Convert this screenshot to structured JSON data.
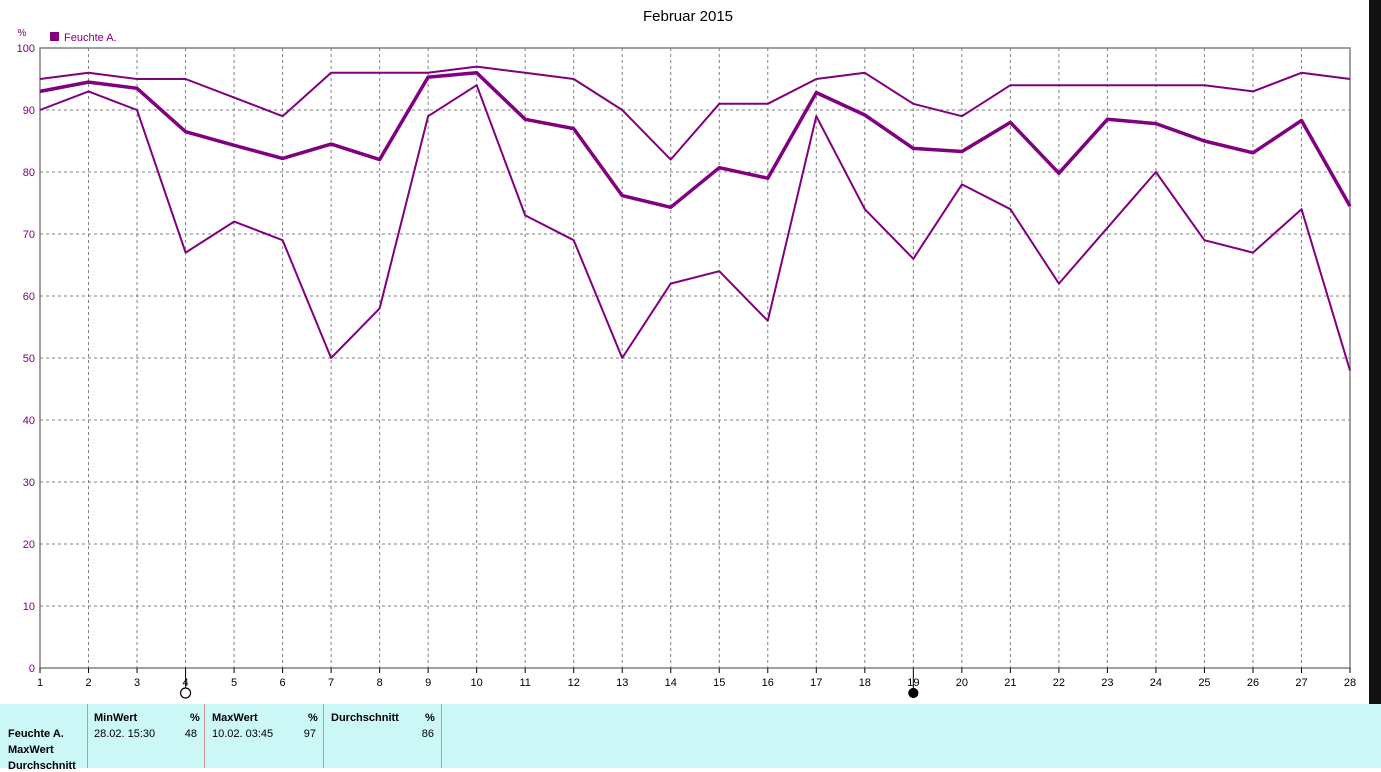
{
  "chart_data": {
    "type": "line",
    "title": "Februar 2015",
    "y_unit": "%",
    "legend": [
      "Feuchte A."
    ],
    "legend_placement": "top-left",
    "grid": true,
    "xlim": [
      1,
      28
    ],
    "ylim": [
      0,
      100
    ],
    "x": [
      1,
      2,
      3,
      4,
      5,
      6,
      7,
      8,
      9,
      10,
      11,
      12,
      13,
      14,
      15,
      16,
      17,
      18,
      19,
      20,
      21,
      22,
      23,
      24,
      25,
      26,
      27,
      28
    ],
    "x_ticks": [
      "1",
      "2",
      "3",
      "4",
      "5",
      "6",
      "7",
      "8",
      "9",
      "10",
      "11",
      "12",
      "13",
      "14",
      "15",
      "16",
      "17",
      "18",
      "19",
      "20",
      "21",
      "22",
      "23",
      "24",
      "25",
      "26",
      "27",
      "28"
    ],
    "y_ticks": [
      "0",
      "10",
      "20",
      "30",
      "40",
      "50",
      "60",
      "70",
      "80",
      "90",
      "100"
    ],
    "series": [
      {
        "values": [
          95,
          96,
          95,
          95,
          92,
          89,
          96,
          96,
          96,
          97,
          96,
          95,
          90,
          82,
          91,
          91,
          95,
          96,
          91,
          89,
          94,
          94,
          94,
          94,
          94,
          93,
          96,
          95
        ],
        "width": 2
      },
      {
        "values": [
          93,
          94.5,
          93.5,
          86.5,
          84.3,
          82.2,
          84.5,
          82,
          95.3,
          96,
          88.5,
          87,
          76.2,
          74.3,
          80.7,
          79,
          92.8,
          89.2,
          83.8,
          83.3,
          88,
          79.8,
          88.5,
          87.8,
          85,
          83.1,
          88.3,
          74.5
        ],
        "width": 3.5
      },
      {
        "values": [
          90,
          93,
          90,
          67,
          72,
          69,
          50,
          58,
          89,
          94,
          73,
          69,
          50,
          62,
          64,
          56,
          89,
          74,
          66,
          78,
          74,
          62,
          71,
          80,
          69,
          67,
          74,
          48
        ],
        "width": 2
      }
    ],
    "markers": [
      {
        "x": 4,
        "style": "open"
      },
      {
        "x": 19,
        "style": "filled"
      }
    ],
    "colors": {
      "series": "#800080",
      "axis_text": "#800080",
      "grid": "#808080"
    }
  },
  "stats": {
    "rows": [
      "Feuchte A.",
      "MaxWert",
      "Durchschnitt"
    ],
    "min": {
      "head": "MinWert",
      "unit": "%",
      "date": "28.02.  15:30",
      "value": "48"
    },
    "max": {
      "head": "MaxWert",
      "unit": "%",
      "date": "10.02.  03:45",
      "value": "97"
    },
    "avg": {
      "head": "Durchschnitt",
      "unit": "%",
      "value": "86"
    },
    "bg_color": "#ccf7f7"
  }
}
